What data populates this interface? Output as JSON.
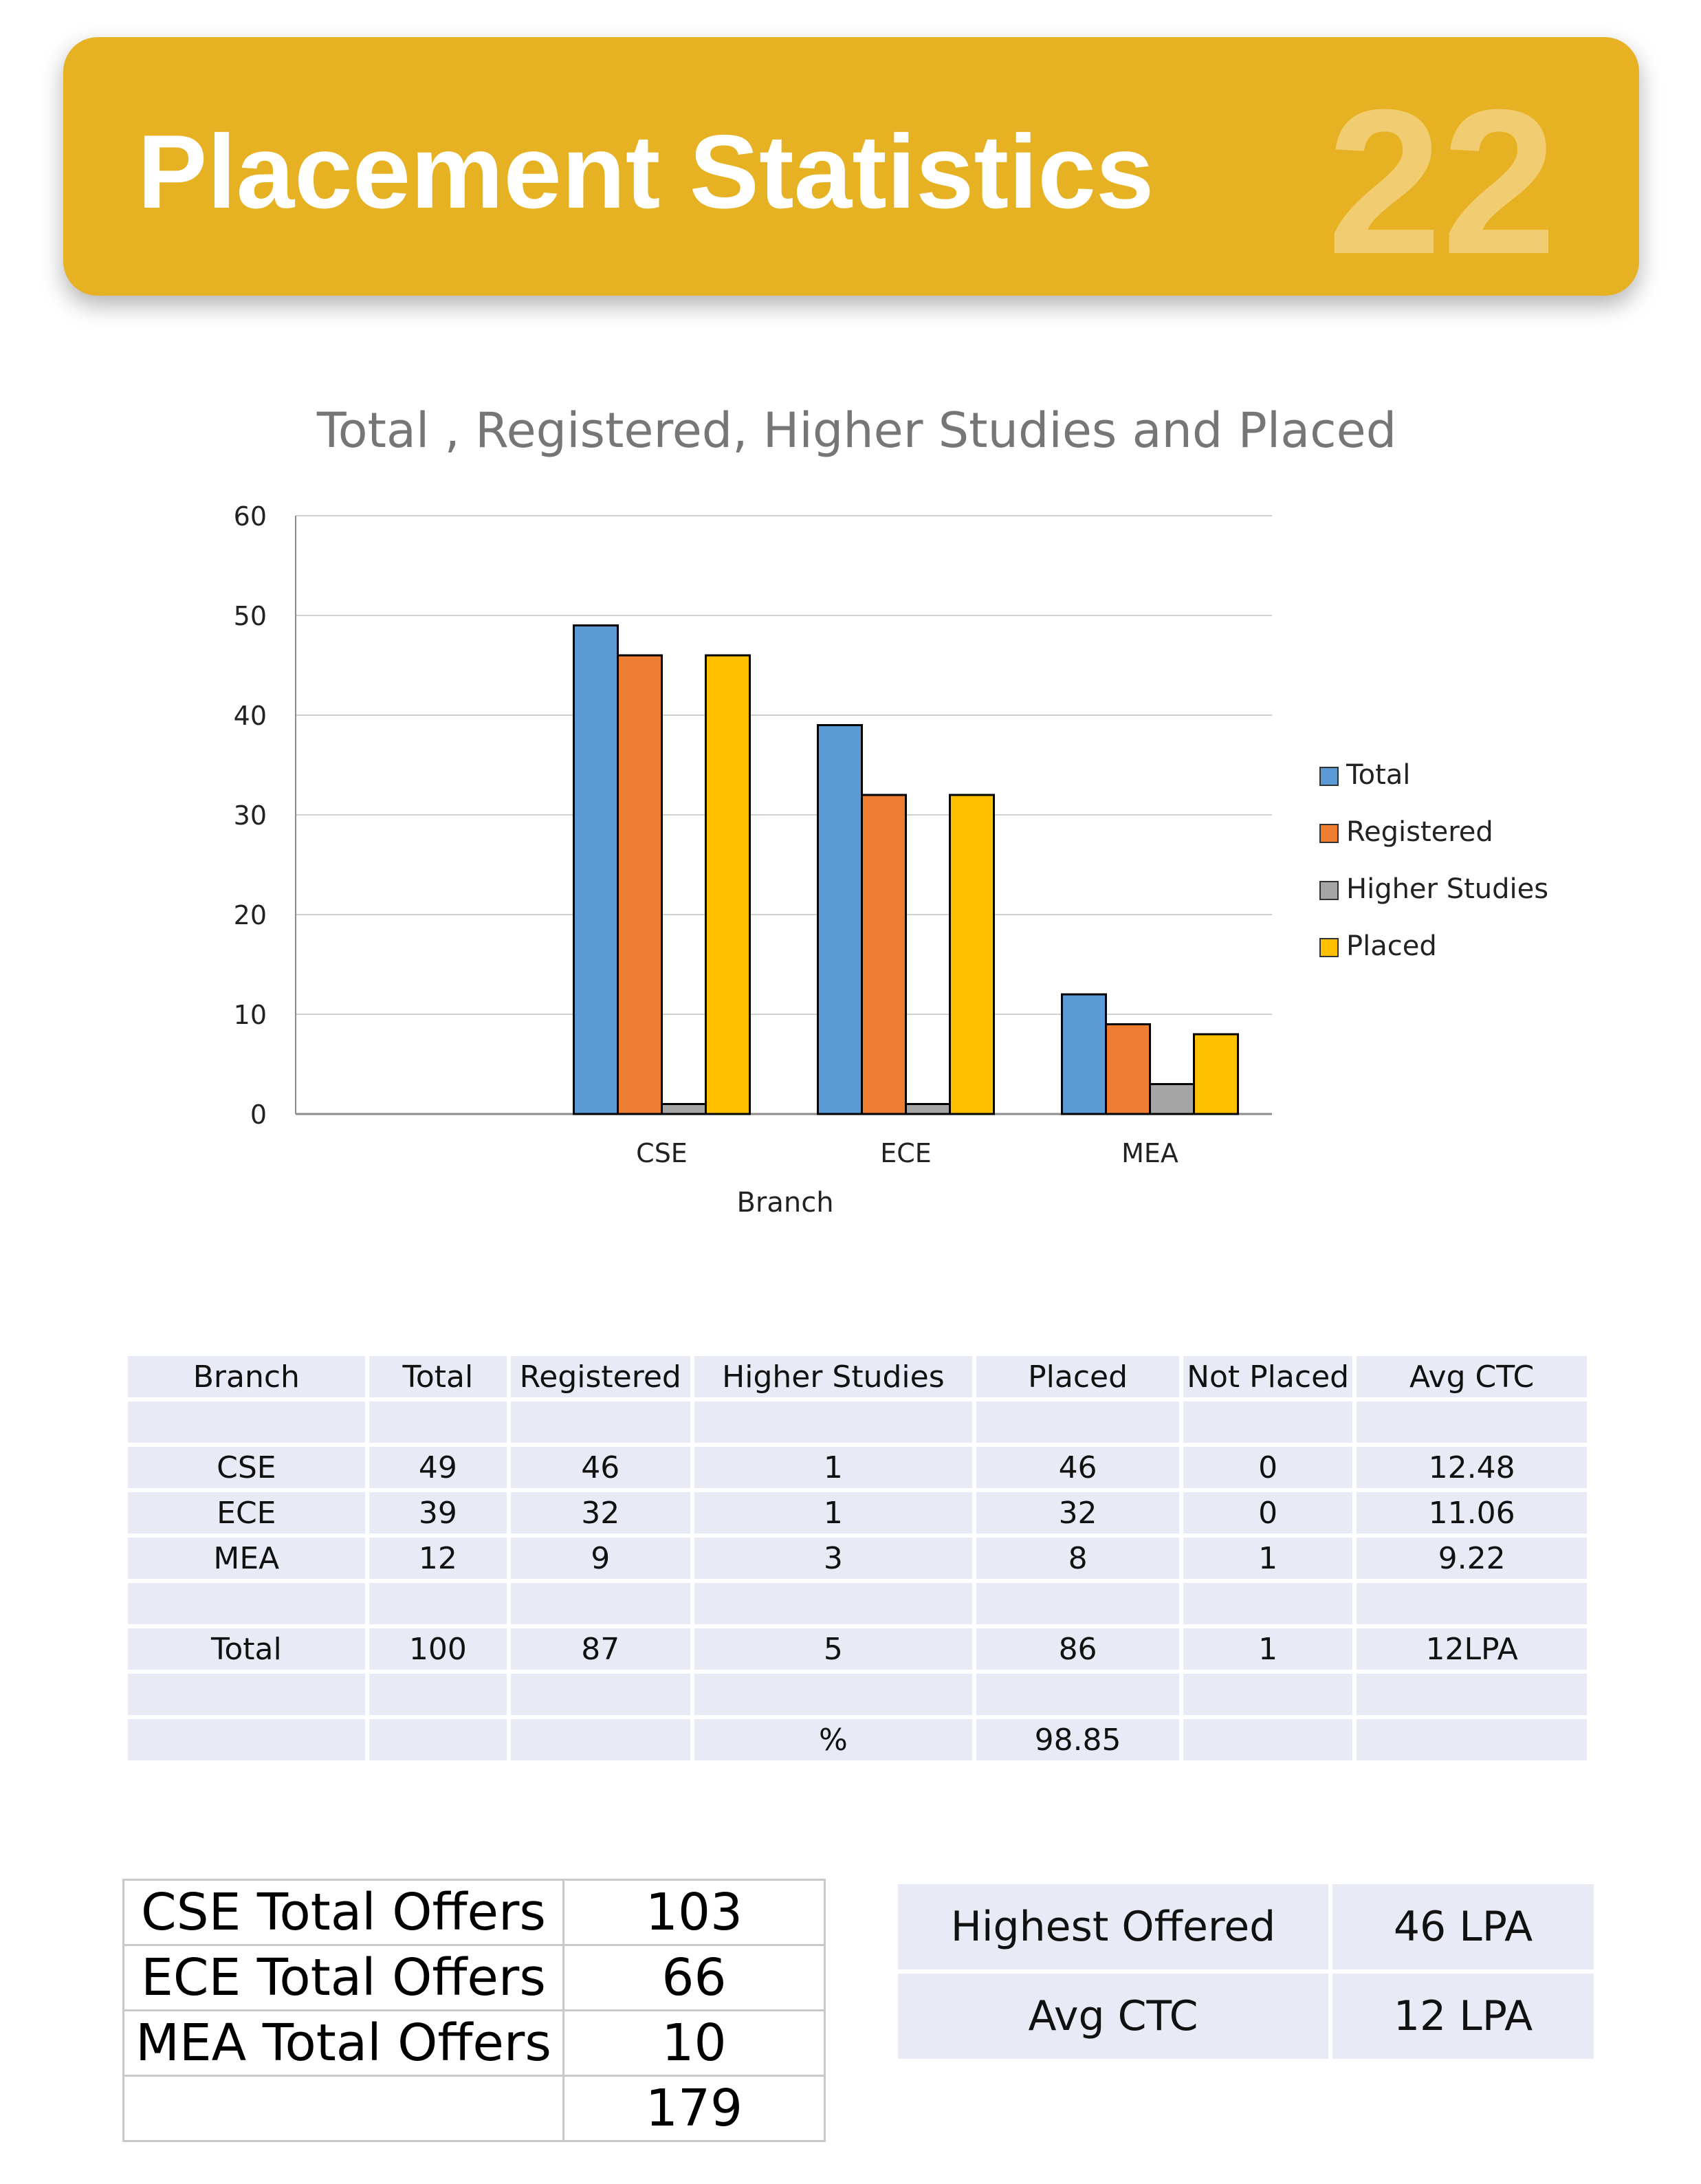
{
  "header": {
    "title": "Placement Statistics",
    "page_number": "22"
  },
  "chart_data": {
    "type": "bar",
    "title": "Total , Registered, Higher Studies and Placed",
    "xlabel": "Branch",
    "ylabel": "",
    "ylim": [
      0,
      60
    ],
    "yticks": [
      "0",
      "10",
      "20",
      "30",
      "40",
      "50",
      "60"
    ],
    "categories": [
      "",
      "CSE",
      "ECE",
      "MEA"
    ],
    "series": [
      {
        "name": "Total",
        "color": "#5b9bd5",
        "values": [
          null,
          49,
          39,
          12
        ]
      },
      {
        "name": "Registered",
        "color": "#ed7d31",
        "values": [
          null,
          46,
          32,
          9
        ]
      },
      {
        "name": "Higher Studies",
        "color": "#a5a5a5",
        "values": [
          null,
          1,
          1,
          3
        ]
      },
      {
        "name": "Placed",
        "color": "#ffc000",
        "values": [
          null,
          46,
          32,
          8
        ]
      }
    ],
    "grid": true,
    "legend": "right"
  },
  "summary_table": {
    "headers": [
      "Branch",
      "Total",
      "Registered",
      "Higher Studies",
      "Placed",
      "Not Placed",
      "Avg CTC"
    ],
    "rows": [
      [
        "",
        "",
        "",
        "",
        "",
        "",
        ""
      ],
      [
        "CSE",
        "49",
        "46",
        "1",
        "46",
        "0",
        "12.48"
      ],
      [
        "ECE",
        "39",
        "32",
        "1",
        "32",
        "0",
        "11.06"
      ],
      [
        "MEA",
        "12",
        "9",
        "3",
        "8",
        "1",
        "9.22"
      ],
      [
        "",
        "",
        "",
        "",
        "",
        "",
        ""
      ],
      [
        "Total",
        "100",
        "87",
        "5",
        "86",
        "1",
        "12LPA"
      ],
      [
        "",
        "",
        "",
        "",
        "",
        "",
        ""
      ],
      [
        "",
        "",
        "",
        "%",
        "98.85",
        "",
        ""
      ]
    ]
  },
  "offers": [
    {
      "label": "CSE Total Offers",
      "value": "103"
    },
    {
      "label": "ECE Total Offers",
      "value": "66"
    },
    {
      "label": "MEA Total Offers",
      "value": "10"
    },
    {
      "label": "",
      "value": "179"
    }
  ],
  "ctc_summary": [
    {
      "label": "Highest Offered",
      "value": "46 LPA"
    },
    {
      "label": "Avg CTC",
      "value": "12 LPA"
    }
  ]
}
